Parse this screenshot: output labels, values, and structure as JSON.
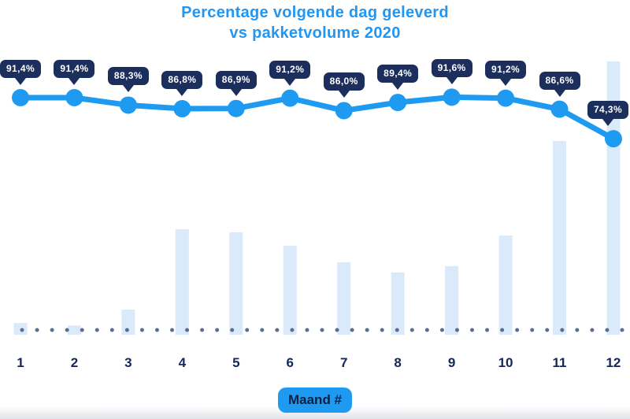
{
  "title": {
    "line1": "Percentage volgende dag geleverd",
    "line2": "vs pakketvolume 2020"
  },
  "x_axis": {
    "label": "Maand #",
    "tick_labels": [
      "1",
      "2",
      "3",
      "4",
      "5",
      "6",
      "7",
      "8",
      "9",
      "10",
      "11",
      "12"
    ]
  },
  "chart_data": {
    "type": "combo",
    "categories": [
      "1",
      "2",
      "3",
      "4",
      "5",
      "6",
      "7",
      "8",
      "9",
      "10",
      "11",
      "12"
    ],
    "title": "Percentage volgende dag geleverd vs pakketvolume 2020",
    "xlabel": "Maand #",
    "ylabel": "",
    "grid": false,
    "legend": "none",
    "y_axis_shown": false,
    "series": [
      {
        "name": "Percentage volgende dag geleverd",
        "type": "line",
        "unit": "%",
        "values": [
          91.4,
          91.4,
          88.3,
          86.8,
          86.9,
          91.2,
          86.0,
          89.4,
          91.6,
          91.2,
          86.6,
          74.3
        ],
        "point_labels": [
          "91,4%",
          "91,4%",
          "88,3%",
          "86,8%",
          "86,9%",
          "91,2%",
          "86,0%",
          "89,4%",
          "91,6%",
          "91,2%",
          "86,6%",
          "74,3%"
        ]
      },
      {
        "name": "Pakketvolume 2020",
        "type": "bar",
        "axis": "hidden",
        "values_pct_of_max": [
          4.3,
          3.4,
          9.2,
          38.6,
          37.5,
          32.6,
          26.5,
          22.8,
          25.1,
          36.3,
          70.9,
          100
        ]
      }
    ]
  },
  "colors": {
    "title": "#2196f3",
    "line": "#1e9bf0",
    "point": "#1e9bf0",
    "badge_bg": "#1b2e5c",
    "badge_text": "#ffffff",
    "bar": "#dbeafa",
    "axis_dot": "#5c6d92",
    "tick_label": "#14275a",
    "xlabel_badge_bg": "#1e9bf0",
    "xlabel_badge_text": "#0c2146"
  }
}
